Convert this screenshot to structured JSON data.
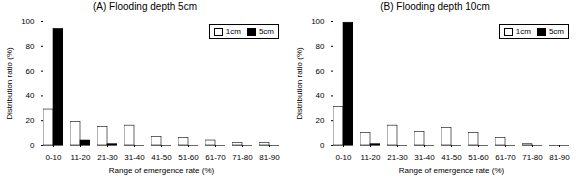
{
  "chart_data": [
    {
      "type": "bar",
      "title": "(A) Flooding depth 5cm",
      "categories": [
        "0-10",
        "11-20",
        "21-30",
        "31-40",
        "41-50",
        "51-60",
        "61-70",
        "71-80",
        "81-90"
      ],
      "series": [
        {
          "name": "1cm",
          "color": "white",
          "values": [
            29,
            19,
            15,
            16,
            7,
            6,
            4,
            2,
            2
          ]
        },
        {
          "name": "5cm",
          "color": "black",
          "values": [
            94,
            4,
            1,
            0,
            0,
            0,
            0,
            0,
            0
          ]
        }
      ],
      "xlabel": "Range of emergence rate (%)",
      "ylabel": "Distribution ratio (%)",
      "ylim": [
        0,
        100
      ],
      "yticks": [
        0,
        20,
        40,
        60,
        80,
        100
      ],
      "grid": false,
      "legend": "upper right"
    },
    {
      "type": "bar",
      "title": "(B) Flooding depth 10cm",
      "categories": [
        "0-10",
        "11-20",
        "21-30",
        "31-40",
        "41-50",
        "51-60",
        "61-70",
        "71-80",
        "81-90"
      ],
      "series": [
        {
          "name": "1cm",
          "color": "white",
          "values": [
            31,
            10,
            16,
            11,
            14,
            10,
            6,
            1,
            0
          ]
        },
        {
          "name": "5cm",
          "color": "black",
          "values": [
            99,
            1,
            0,
            0,
            0,
            0,
            0,
            0,
            0
          ]
        }
      ],
      "xlabel": "Range of emergence rate (%)",
      "ylabel": "Distribution ratio (%)",
      "ylim": [
        0,
        100
      ],
      "yticks": [
        0,
        20,
        40,
        60,
        80,
        100
      ],
      "grid": false,
      "legend": "upper right"
    }
  ]
}
